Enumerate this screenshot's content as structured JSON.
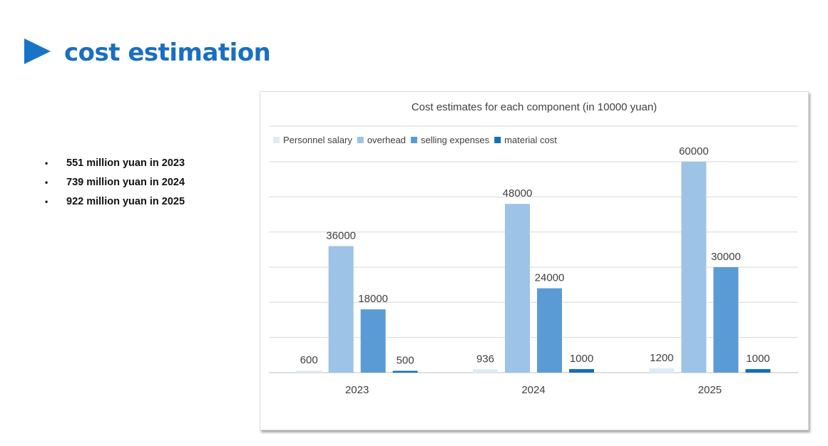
{
  "page": {
    "title": "cost estimation"
  },
  "summary": {
    "items": [
      "551 million yuan in 2023",
      "739 million yuan in 2024",
      "922 million yuan in 2025"
    ]
  },
  "colors": {
    "title": "#1a6fc0",
    "arrow": "#1874c7",
    "series": [
      "#ddebf7",
      "#9dc3e6",
      "#5b9bd5",
      "#0f6fc0"
    ],
    "grid": "#d9d9d9",
    "text": "#404040"
  },
  "icons": {
    "title_marker": "play-triangle-icon",
    "bullet": "bullet-dot-icon"
  },
  "chart_data": {
    "type": "bar",
    "title": "Cost estimates for each component (in 10000 yuan)",
    "categories": [
      "2023",
      "2024",
      "2025"
    ],
    "series": [
      {
        "name": "Personnel salary",
        "values": [
          600,
          936,
          1200
        ]
      },
      {
        "name": "overhead",
        "values": [
          36000,
          48000,
          60000
        ]
      },
      {
        "name": "selling expenses",
        "values": [
          18000,
          24000,
          30000
        ]
      },
      {
        "name": "material cost",
        "values": [
          500,
          1000,
          1000
        ]
      }
    ],
    "ylim": [
      0,
      60000
    ],
    "grid": true,
    "y_axis_labels": false,
    "data_labels": true,
    "legend_position": "top-left"
  }
}
